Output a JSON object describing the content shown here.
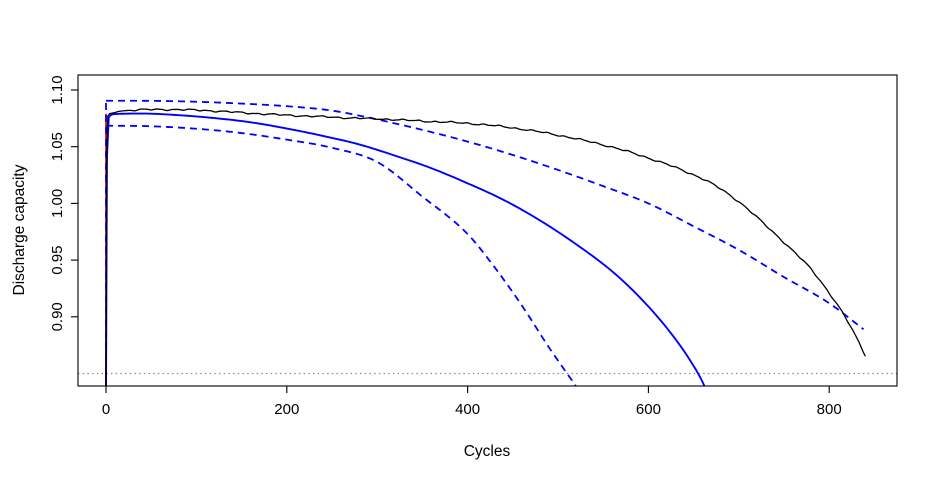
{
  "chart_data": {
    "type": "line",
    "title": "",
    "xlabel": "Cycles",
    "ylabel": "Discharge capacity",
    "xlim": [
      -31,
      875
    ],
    "ylim": [
      0.839,
      1.1132
    ],
    "grid": false,
    "legend": "none",
    "x_ticks": [
      {
        "label": "0",
        "value": 0
      },
      {
        "label": "200",
        "value": 200
      },
      {
        "label": "400",
        "value": 400
      },
      {
        "label": "600",
        "value": 600
      },
      {
        "label": "800",
        "value": 800
      }
    ],
    "y_ticks": [
      {
        "label": "0.90",
        "value": 0.9
      },
      {
        "label": "0.95",
        "value": 0.95
      },
      {
        "label": "1.00",
        "value": 1.0
      },
      {
        "label": "1.05",
        "value": 1.05
      },
      {
        "label": "1.10",
        "value": 1.1
      }
    ],
    "threshold_line": {
      "y": 0.85,
      "style": "dotted",
      "color": "#8c8c8c"
    },
    "start_vertical_line": {
      "x": 0,
      "y_from": 0.839,
      "solid_color": "#ff0000",
      "solid_top": 1.079,
      "dashed_color": "#0000ff",
      "dashed_top": 1.0905
    },
    "colors": {
      "observed": "#000000",
      "prediction": "#0000ff",
      "threshold": "#8c8c8c",
      "start_line": "#ff0000"
    },
    "series": [
      {
        "name": "observed-capacity",
        "color": "#000000",
        "style": "solid",
        "width": 1.3,
        "noise_amplitude": 0.0005,
        "points": [
          [
            0,
            0.839
          ],
          [
            1,
            1.05
          ],
          [
            2,
            1.077
          ],
          [
            6,
            1.0795
          ],
          [
            15,
            1.0812
          ],
          [
            30,
            1.0822
          ],
          [
            60,
            1.0828
          ],
          [
            90,
            1.0825
          ],
          [
            120,
            1.0815
          ],
          [
            150,
            1.08
          ],
          [
            180,
            1.0786
          ],
          [
            210,
            1.0774
          ],
          [
            240,
            1.0764
          ],
          [
            270,
            1.0753
          ],
          [
            300,
            1.0746
          ],
          [
            330,
            1.0734
          ],
          [
            360,
            1.0722
          ],
          [
            400,
            1.0706
          ],
          [
            440,
            1.0676
          ],
          [
            480,
            1.063
          ],
          [
            520,
            1.057
          ],
          [
            560,
            1.0496
          ],
          [
            600,
            1.04
          ],
          [
            640,
            1.0285
          ],
          [
            670,
            1.0175
          ],
          [
            700,
            1.0015
          ],
          [
            730,
            0.9805
          ],
          [
            760,
            0.958
          ],
          [
            780,
            0.942
          ],
          [
            800,
            0.921
          ],
          [
            812,
            0.907
          ],
          [
            826,
            0.888
          ],
          [
            840,
            0.866
          ]
        ]
      },
      {
        "name": "predicted-mean",
        "color": "#0000ff",
        "style": "solid",
        "width": 1.9,
        "noise_amplitude": 0,
        "points": [
          [
            0,
            0.839
          ],
          [
            1,
            1.04
          ],
          [
            3,
            1.076
          ],
          [
            10,
            1.0788
          ],
          [
            40,
            1.0792
          ],
          [
            80,
            1.0778
          ],
          [
            120,
            1.0752
          ],
          [
            160,
            1.0715
          ],
          [
            200,
            1.066
          ],
          [
            240,
            1.0595
          ],
          [
            280,
            1.052
          ],
          [
            320,
            1.042
          ],
          [
            360,
            1.031
          ],
          [
            400,
            1.0177
          ],
          [
            440,
            1.003
          ],
          [
            480,
            0.985
          ],
          [
            520,
            0.964
          ],
          [
            560,
            0.94
          ],
          [
            590,
            0.9175
          ],
          [
            620,
            0.8905
          ],
          [
            645,
            0.863
          ],
          [
            662,
            0.8389
          ],
          [
            667,
            0.828
          ]
        ]
      },
      {
        "name": "prediction-interval-upper",
        "color": "#0000ff",
        "style": "dashed",
        "width": 1.8,
        "noise_amplitude": 0,
        "points": [
          [
            0,
            1.0905
          ],
          [
            50,
            1.0904
          ],
          [
            100,
            1.0896
          ],
          [
            150,
            1.088
          ],
          [
            200,
            1.0857
          ],
          [
            250,
            1.0818
          ],
          [
            300,
            1.074
          ],
          [
            350,
            1.0648
          ],
          [
            400,
            1.0545
          ],
          [
            450,
            1.0427
          ],
          [
            500,
            1.0295
          ],
          [
            550,
            1.0152
          ],
          [
            600,
            1.0
          ],
          [
            650,
            0.9798
          ],
          [
            700,
            0.959
          ],
          [
            750,
            0.935
          ],
          [
            800,
            0.912
          ],
          [
            838,
            0.889
          ]
        ]
      },
      {
        "name": "prediction-interval-lower",
        "color": "#0000ff",
        "style": "dashed",
        "width": 1.8,
        "noise_amplitude": 0,
        "points": [
          [
            0,
            1.0685
          ],
          [
            50,
            1.068
          ],
          [
            100,
            1.0658
          ],
          [
            150,
            1.062
          ],
          [
            200,
            1.0562
          ],
          [
            250,
            1.049
          ],
          [
            300,
            1.0365
          ],
          [
            350,
            1.006
          ],
          [
            400,
            0.973
          ],
          [
            430,
            0.9435
          ],
          [
            460,
            0.91
          ],
          [
            490,
            0.873
          ],
          [
            510,
            0.85
          ],
          [
            522,
            0.836
          ],
          [
            527,
            0.828
          ]
        ]
      }
    ]
  }
}
